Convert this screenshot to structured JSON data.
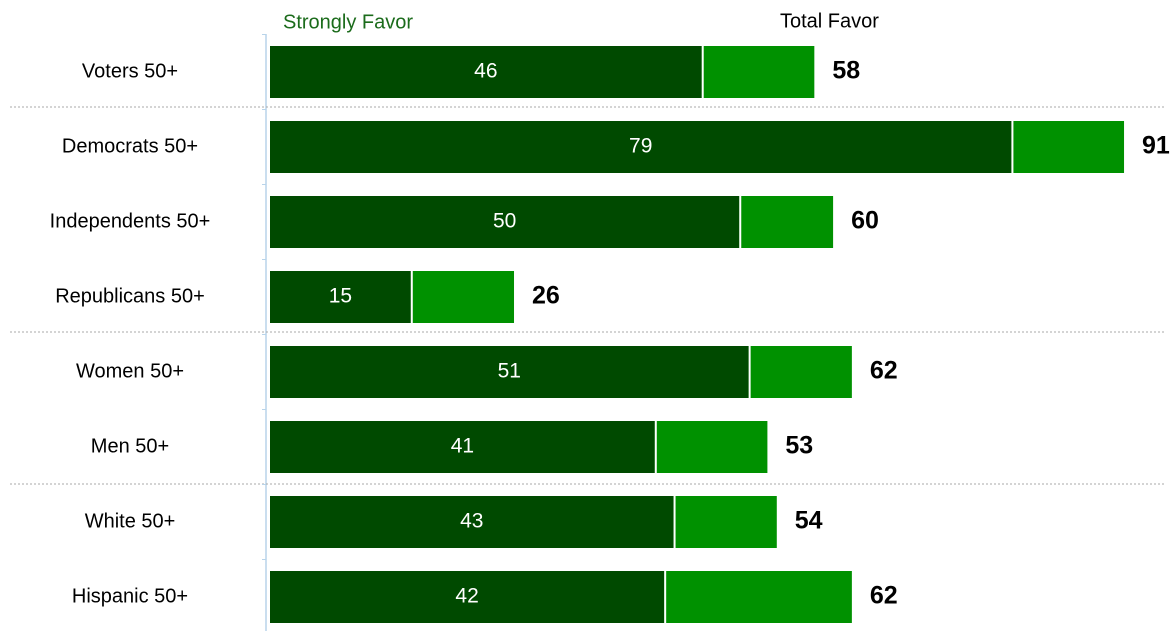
{
  "chart_data": {
    "type": "bar",
    "orientation": "horizontal",
    "categories": [
      "Voters 50+",
      "Democrats 50+",
      "Independents 50+",
      "Republicans 50+",
      "Women 50+",
      "Men 50+",
      "White 50+",
      "Hispanic 50+"
    ],
    "series": [
      {
        "name": "Strongly Favor",
        "color": "#004a00",
        "values": [
          46,
          79,
          50,
          15,
          51,
          41,
          43,
          42
        ]
      },
      {
        "name": "Total Favor",
        "color": "#009100",
        "values": [
          58,
          91,
          60,
          26,
          62,
          53,
          54,
          62
        ]
      }
    ]
  }
}
